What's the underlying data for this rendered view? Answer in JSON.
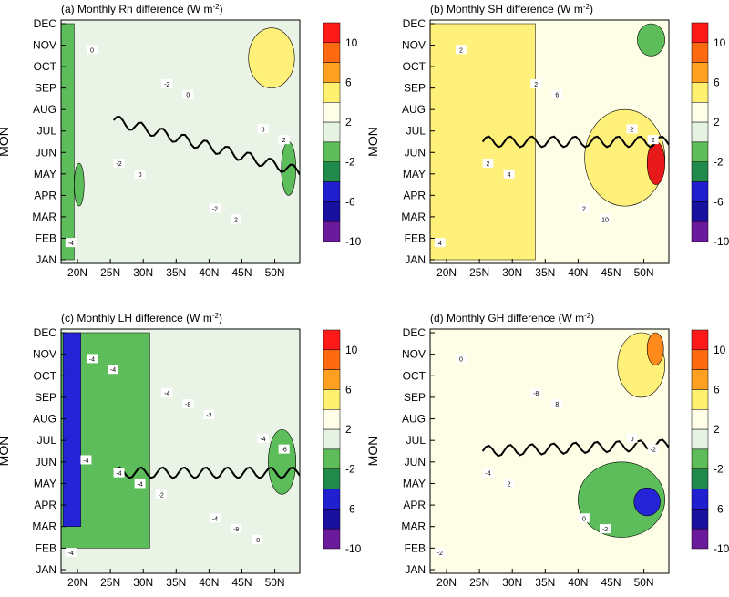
{
  "chart_data": [
    {
      "type": "heatmap",
      "panel": "a",
      "title": "(a) Monthly Rn difference (W m",
      "title_sup": "-2",
      "title_end": ")",
      "ylabel": "MON",
      "x_ticks": [
        "20N",
        "25N",
        "30N",
        "35N",
        "40N",
        "45N",
        "50N"
      ],
      "y_ticks": [
        "JAN",
        "FEB",
        "MAR",
        "APR",
        "MAY",
        "JUN",
        "JUL",
        "AUG",
        "SEP",
        "OCT",
        "NOV",
        "DEC"
      ],
      "colorbar_levels": [
        "10",
        "6",
        "2",
        "-2",
        "-6",
        "-10"
      ],
      "contour_labels": [
        "-4",
        "-2",
        "-2",
        "-2",
        "0",
        "0",
        "0",
        "0",
        "2",
        "2"
      ],
      "features": [
        {
          "shape": "band",
          "level": "-2..-6",
          "lat": [
            17.5,
            19.5
          ],
          "months": [
            1,
            12
          ]
        },
        {
          "shape": "blob",
          "level": "-2..-6",
          "lat": [
            19.5,
            21
          ],
          "months": [
            3.5,
            5.5
          ]
        },
        {
          "shape": "blob",
          "level": "2..6",
          "lat": [
            46,
            53
          ],
          "months": [
            9,
            11.8
          ]
        },
        {
          "shape": "blob",
          "level": "-2..-6",
          "lat": [
            51,
            53.2
          ],
          "months": [
            4,
            6.5
          ]
        }
      ]
    },
    {
      "type": "heatmap",
      "panel": "b",
      "title": "(b) Monthly SH difference (W m",
      "title_sup": "-2",
      "title_end": ")",
      "ylabel": "MON",
      "x_ticks": [
        "20N",
        "25N",
        "30N",
        "35N",
        "40N",
        "45N",
        "50N"
      ],
      "y_ticks": [
        "JAN",
        "FEB",
        "MAR",
        "APR",
        "MAY",
        "JUN",
        "JUL",
        "AUG",
        "SEP",
        "OCT",
        "NOV",
        "DEC"
      ],
      "colorbar_levels": [
        "10",
        "6",
        "2",
        "-2",
        "-6",
        "-10"
      ],
      "contour_labels": [
        "4",
        "2",
        "2",
        "2",
        "2",
        "2",
        "4",
        "6",
        "10",
        "2"
      ],
      "features": [
        {
          "shape": "band",
          "level": "2..6",
          "lat": [
            17.5,
            33.5
          ],
          "months": [
            1,
            12
          ]
        },
        {
          "shape": "blob",
          "level": "2..6",
          "lat": [
            41,
            53.2
          ],
          "months": [
            3.5,
            8
          ]
        },
        {
          "shape": "blob",
          "level": ">10",
          "lat": [
            50.5,
            53.2
          ],
          "months": [
            4.5,
            6.5
          ]
        },
        {
          "shape": "blob",
          "level": "-2..-6",
          "lat": [
            49,
            53.2
          ],
          "months": [
            10.5,
            12
          ]
        }
      ]
    },
    {
      "type": "heatmap",
      "panel": "c",
      "title": "(c) Monthly LH difference (W m",
      "title_sup": "-2",
      "title_end": ")",
      "ylabel": "MON",
      "x_ticks": [
        "20N",
        "25N",
        "30N",
        "35N",
        "40N",
        "45N",
        "50N"
      ],
      "y_ticks": [
        "JAN",
        "FEB",
        "MAR",
        "APR",
        "MAY",
        "JUN",
        "JUL",
        "AUG",
        "SEP",
        "OCT",
        "NOV",
        "DEC"
      ],
      "colorbar_levels": [
        "10",
        "6",
        "2",
        "-2",
        "-6",
        "-10"
      ],
      "contour_labels": [
        "-4",
        "-4",
        "-4",
        "-4",
        "-4",
        "-4",
        "-4",
        "-8",
        "-8",
        "-6",
        "-4",
        "-2",
        "-2",
        "-8",
        "-4"
      ],
      "features": [
        {
          "shape": "band",
          "level": "-2..-6",
          "lat": [
            17.5,
            31
          ],
          "months": [
            2,
            12
          ]
        },
        {
          "shape": "band",
          "level": "-6..-10",
          "lat": [
            17.8,
            20.5
          ],
          "months": [
            3,
            12
          ]
        },
        {
          "shape": "blob",
          "level": "-6..-10",
          "lat": [
            51,
            53.2
          ],
          "months": [
            5,
            7
          ]
        },
        {
          "shape": "blob",
          "level": "-2..-6",
          "lat": [
            49,
            53.2
          ],
          "months": [
            4.5,
            7.5
          ]
        }
      ]
    },
    {
      "type": "heatmap",
      "panel": "d",
      "title": "(d) Monthly GH difference (W m",
      "title_sup": "-2",
      "title_end": ")",
      "ylabel": "MON",
      "x_ticks": [
        "20N",
        "25N",
        "30N",
        "35N",
        "40N",
        "45N",
        "50N"
      ],
      "y_ticks": [
        "JAN",
        "FEB",
        "MAR",
        "APR",
        "MAY",
        "JUN",
        "JUL",
        "AUG",
        "SEP",
        "OCT",
        "NOV",
        "DEC"
      ],
      "colorbar_levels": [
        "10",
        "6",
        "2",
        "-2",
        "-6",
        "-10"
      ],
      "contour_labels": [
        "-2",
        "-4",
        "-8",
        "0",
        "0",
        "0",
        "2",
        "8",
        "-2",
        "-2"
      ],
      "features": [
        {
          "shape": "blob",
          "level": "2..6",
          "lat": [
            46,
            53.2
          ],
          "months": [
            9,
            12
          ]
        },
        {
          "shape": "blob",
          "level": "6..10",
          "lat": [
            50.5,
            53
          ],
          "months": [
            10.5,
            12
          ]
        },
        {
          "shape": "blob",
          "level": "-2..-6",
          "lat": [
            40,
            53.2
          ],
          "months": [
            2.5,
            6
          ]
        },
        {
          "shape": "blob",
          "level": "-6..-10",
          "lat": [
            48.5,
            52.5
          ],
          "months": [
            3.5,
            4.8
          ]
        }
      ]
    }
  ]
}
